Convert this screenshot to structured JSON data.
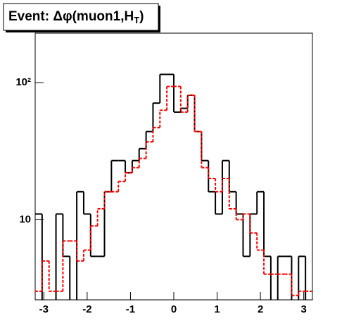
{
  "chart_data": {
    "type": "histogram",
    "title_parts": [
      "Event: Δφ(muon1,H",
      "T",
      ")"
    ],
    "bins": [
      -3.2,
      -3.04,
      -2.88,
      -2.72,
      -2.56,
      -2.4,
      -2.24,
      -2.08,
      -1.92,
      -1.76,
      -1.6,
      -1.44,
      -1.28,
      -1.12,
      -0.96,
      -0.8,
      -0.64,
      -0.48,
      -0.32,
      -0.16,
      0,
      0.16,
      0.32,
      0.48,
      0.64,
      0.8,
      0.96,
      1.12,
      1.28,
      1.44,
      1.6,
      1.76,
      1.92,
      2.08,
      2.24,
      2.4,
      2.56,
      2.72,
      2.88,
      3.04,
      3.2
    ],
    "series": [
      {
        "color": "#000000",
        "dashed": false,
        "values": [
          11,
          0,
          0,
          11,
          5.4,
          0,
          16,
          11,
          5.4,
          5.4,
          16,
          27,
          27,
          22,
          27,
          33,
          44,
          71,
          115,
          115,
          61,
          65,
          81,
          44,
          27,
          16,
          11,
          27,
          16,
          11,
          5.4,
          11,
          16,
          5.4,
          0,
          5.4,
          5.4,
          0,
          5.4,
          0
        ]
      },
      {
        "color": "#ff0000",
        "dashed": true,
        "values": [
          3,
          5,
          3,
          3,
          7,
          7,
          5,
          6,
          9,
          12,
          16,
          16,
          19,
          22,
          24,
          28,
          37,
          47,
          63,
          94,
          94,
          61,
          81,
          44,
          24,
          20,
          16,
          20,
          12,
          10,
          11,
          8,
          6,
          4,
          4,
          4,
          4,
          2.8,
          3,
          3
        ]
      }
    ],
    "xlim": [
      -3.2,
      3.2
    ],
    "xticks": [
      -3,
      -2,
      -1,
      0,
      1,
      2,
      3
    ],
    "ylim": [
      2.6,
      230
    ],
    "log_y": true,
    "yticks": [
      {
        "value": 10,
        "label": "10"
      },
      {
        "value": 100,
        "label": "10²"
      }
    ]
  }
}
